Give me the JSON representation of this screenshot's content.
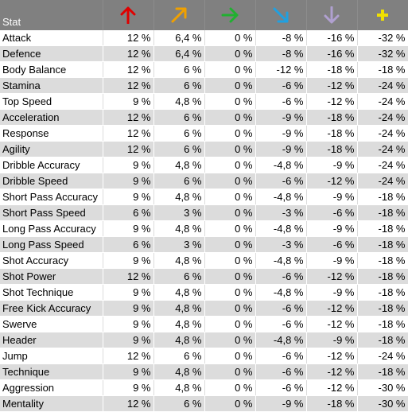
{
  "header": {
    "stat_label": "Stat",
    "columns": [
      {
        "icon": "arrow-up-icon",
        "color": "#e00000"
      },
      {
        "icon": "arrow-up-right-icon",
        "color": "#f0a000"
      },
      {
        "icon": "arrow-right-icon",
        "color": "#20b030"
      },
      {
        "icon": "arrow-down-right-icon",
        "color": "#20a0e0"
      },
      {
        "icon": "arrow-down-icon",
        "color": "#b0a0d0"
      },
      {
        "icon": "plus-icon",
        "color": "#f0e000"
      }
    ]
  },
  "rows": [
    {
      "name": "Attack",
      "v": [
        "12 %",
        "6,4 %",
        "0 %",
        "-8 %",
        "-16 %",
        "-32 %"
      ]
    },
    {
      "name": "Defence",
      "v": [
        "12 %",
        "6,4 %",
        "0 %",
        "-8 %",
        "-16 %",
        "-32 %"
      ]
    },
    {
      "name": "Body Balance",
      "v": [
        "12 %",
        "6 %",
        "0 %",
        "-12 %",
        "-18 %",
        "-18 %"
      ]
    },
    {
      "name": "Stamina",
      "v": [
        "12 %",
        "6 %",
        "0 %",
        "-6 %",
        "-12 %",
        "-24 %"
      ]
    },
    {
      "name": "Top Speed",
      "v": [
        "9 %",
        "4,8 %",
        "0 %",
        "-6 %",
        "-12 %",
        "-24 %"
      ]
    },
    {
      "name": "Acceleration",
      "v": [
        "12 %",
        "6 %",
        "0 %",
        "-9 %",
        "-18 %",
        "-24 %"
      ]
    },
    {
      "name": "Response",
      "v": [
        "12 %",
        "6 %",
        "0 %",
        "-9 %",
        "-18 %",
        "-24 %"
      ]
    },
    {
      "name": "Agility",
      "v": [
        "12 %",
        "6 %",
        "0 %",
        "-9 %",
        "-18 %",
        "-24 %"
      ]
    },
    {
      "name": "Dribble Accuracy",
      "v": [
        "9 %",
        "4,8 %",
        "0 %",
        "-4,8 %",
        "-9 %",
        "-24 %"
      ]
    },
    {
      "name": "Dribble Speed",
      "v": [
        "9 %",
        "6 %",
        "0 %",
        "-6 %",
        "-12 %",
        "-24 %"
      ]
    },
    {
      "name": "Short Pass Accuracy",
      "v": [
        "9 %",
        "4,8 %",
        "0 %",
        "-4,8 %",
        "-9 %",
        "-18 %"
      ]
    },
    {
      "name": "Short Pass Speed",
      "v": [
        "6 %",
        "3 %",
        "0 %",
        "-3 %",
        "-6 %",
        "-18 %"
      ]
    },
    {
      "name": "Long Pass Accuracy",
      "v": [
        "9 %",
        "4,8 %",
        "0 %",
        "-4,8 %",
        "-9 %",
        "-18 %"
      ]
    },
    {
      "name": "Long Pass Speed",
      "v": [
        "6 %",
        "3 %",
        "0 %",
        "-3 %",
        "-6 %",
        "-18 %"
      ]
    },
    {
      "name": "Shot Accuracy",
      "v": [
        "9 %",
        "4,8 %",
        "0 %",
        "-4,8 %",
        "-9 %",
        "-18 %"
      ]
    },
    {
      "name": "Shot Power",
      "v": [
        "12 %",
        "6 %",
        "0 %",
        "-6 %",
        "-12 %",
        "-18 %"
      ]
    },
    {
      "name": "Shot Technique",
      "v": [
        "9 %",
        "4,8 %",
        "0 %",
        "-4,8 %",
        "-9 %",
        "-18 %"
      ]
    },
    {
      "name": "Free Kick Accuracy",
      "v": [
        "9 %",
        "4,8 %",
        "0 %",
        "-6 %",
        "-12 %",
        "-18 %"
      ]
    },
    {
      "name": "Swerve",
      "v": [
        "9 %",
        "4,8 %",
        "0 %",
        "-6 %",
        "-12 %",
        "-18 %"
      ]
    },
    {
      "name": "Header",
      "v": [
        "9 %",
        "4,8 %",
        "0 %",
        "-4,8 %",
        "-9 %",
        "-18 %"
      ]
    },
    {
      "name": "Jump",
      "v": [
        "12 %",
        "6 %",
        "0 %",
        "-6 %",
        "-12 %",
        "-24 %"
      ]
    },
    {
      "name": "Technique",
      "v": [
        "9 %",
        "4,8 %",
        "0 %",
        "-6 %",
        "-12 %",
        "-18 %"
      ]
    },
    {
      "name": "Aggression",
      "v": [
        "9 %",
        "4,8 %",
        "0 %",
        "-6 %",
        "-12 %",
        "-30 %"
      ]
    },
    {
      "name": "Mentality",
      "v": [
        "12 %",
        "6 %",
        "0 %",
        "-9 %",
        "-18 %",
        "-30 %"
      ]
    }
  ]
}
